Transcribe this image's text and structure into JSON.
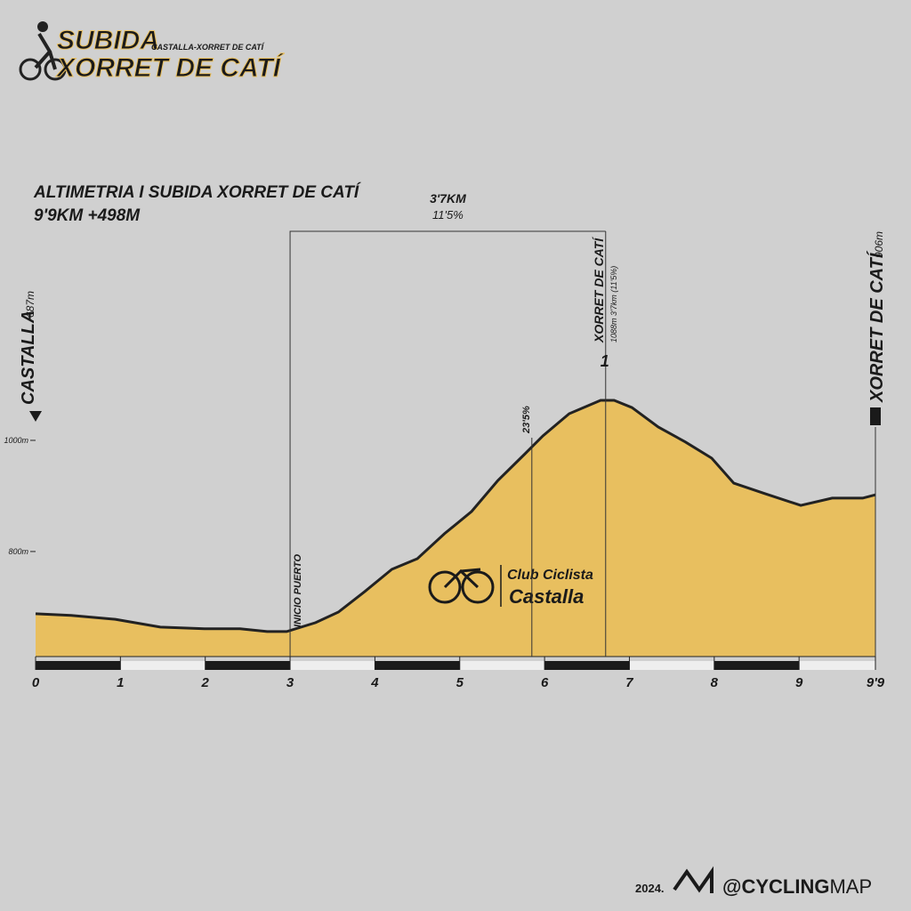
{
  "header": {
    "title_line1": "SUBIDA",
    "title_line2": "XORRET DE CATÍ",
    "subtitle": "CASTALLA-XORRET DE CATÍ"
  },
  "chart_data": {
    "type": "area",
    "title": "ALTIMETRIA I SUBIDA XORRET DE CATÍ",
    "subtitle": "9'9KM +498M",
    "x": [
      0,
      0.42,
      0.94,
      1.47,
      1.99,
      2.41,
      2.73,
      2.96,
      3.3,
      3.57,
      3.88,
      4.2,
      4.5,
      4.82,
      5.14,
      5.45,
      5.77,
      5.98,
      6.29,
      6.66,
      6.82,
      7.03,
      7.34,
      7.66,
      7.97,
      8.23,
      8.6,
      9.02,
      9.39,
      9.75,
      9.9
    ],
    "values": [
      688,
      685,
      678,
      664,
      661,
      661,
      656,
      656,
      672,
      691,
      728,
      768,
      787,
      832,
      872,
      928,
      976,
      1008,
      1048,
      1072,
      1072,
      1059,
      1024,
      997,
      968,
      923,
      904,
      883,
      896,
      896,
      902
    ],
    "color": "#e8bf5f",
    "line_color": "#222222",
    "xlim": [
      0,
      9.9
    ],
    "ylim": [
      611,
      1120
    ],
    "xticks": [
      0,
      1,
      2,
      3,
      4,
      5,
      6,
      7,
      8,
      9,
      {
        "value": 9.9,
        "label": "9'9"
      }
    ],
    "yticks": [
      {
        "value": 800,
        "label": "800m"
      },
      {
        "value": 1000,
        "label": "1000m"
      }
    ],
    "start": {
      "name": "CASTALLA",
      "elevation_label": "687m"
    },
    "finish": {
      "name": "XORRET DE CATÍ",
      "elevation_label": "906m"
    },
    "climb": {
      "x_start": 3,
      "x_end": 6.72,
      "distance_label": "3'7KM",
      "gradient_label": "11'5%",
      "start_label": "INICIO PUERTO"
    },
    "summit": {
      "x": 6.72,
      "name": "XORRET DE CATÍ",
      "detail": "1088m 3'7km (11'5%)",
      "category": "1"
    },
    "max_gradient": {
      "x": 5.85,
      "label": "23'5%"
    }
  },
  "watermark": {
    "club_line1": "Club Ciclista",
    "club_line2": "Castalla"
  },
  "footer": {
    "year": "2024.",
    "brand_bold": "@CYCLING",
    "brand_light": "MAP"
  }
}
